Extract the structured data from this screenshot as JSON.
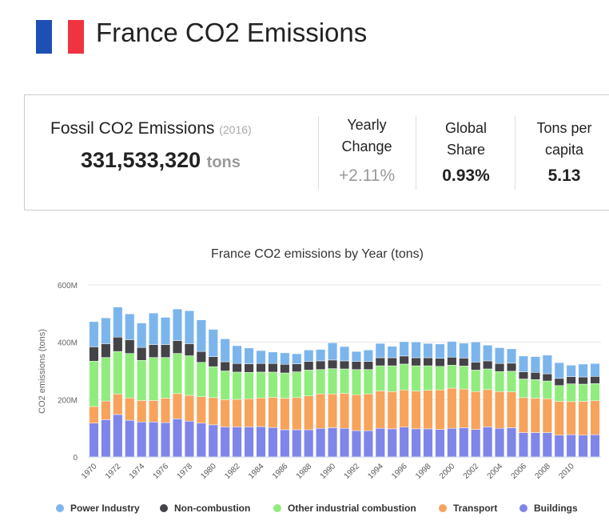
{
  "header": {
    "title": "France CO2 Emissions"
  },
  "stats": {
    "fossil": {
      "label": "Fossil CO2 Emissions",
      "year": "(2016)",
      "value": "331,533,320",
      "unit": "tons"
    },
    "yearly": {
      "label": "Yearly Change",
      "value": "+2.11%"
    },
    "share": {
      "label": "Global Share",
      "value": "0.93%"
    },
    "capita": {
      "label": "Tons per capita",
      "value": "5.13"
    }
  },
  "chart_data": {
    "type": "stacked_bar",
    "title": "France CO2 emissions by Year (tons)",
    "y_label": "CO2 emissions (tons)",
    "categories": [
      "1970",
      null,
      "1972",
      null,
      "1974",
      null,
      "1976",
      null,
      "1978",
      null,
      "1980",
      null,
      "1982",
      null,
      "1984",
      null,
      "1986",
      null,
      "1988",
      null,
      "1990",
      null,
      "1992",
      null,
      "1994",
      null,
      "1996",
      null,
      "1998",
      null,
      "2000",
      null,
      "2002",
      null,
      "2004",
      null,
      "2006",
      null,
      "2008",
      null,
      "2010",
      null,
      null
    ],
    "ylim": [
      0,
      600000000.0
    ],
    "yticks": [
      0,
      {
        "value": 200000000.0,
        "label": "200M"
      },
      {
        "value": 400000000.0,
        "label": "400M"
      },
      {
        "value": 600000000.0,
        "label": "600M"
      }
    ],
    "grid": true,
    "legend": "bottom",
    "series": [
      {
        "name": "Power Industry",
        "color": "#7cb5ec",
        "values": [
          88000000.0,
          90000000.0,
          105000000.0,
          90000000.0,
          85000000.0,
          110000000.0,
          95000000.0,
          110000000.0,
          115000000.0,
          110000000.0,
          95000000.0,
          80000000.0,
          62000000.0,
          55000000.0,
          45000000.0,
          40000000.0,
          40000000.0,
          35000000.0,
          40000000.0,
          40000000.0,
          60000000.0,
          50000000.0,
          35000000.0,
          40000000.0,
          50000000.0,
          40000000.0,
          50000000.0,
          55000000.0,
          50000000.0,
          50000000.0,
          55000000.0,
          52000000.0,
          70000000.0,
          55000000.0,
          55000000.0,
          50000000.0,
          55000000.0,
          55000000.0,
          65000000.0,
          55000000.0,
          40000000.0,
          45000000.0,
          45000000.0
        ]
      },
      {
        "name": "Non-combustion",
        "color": "#434348",
        "values": [
          50000000.0,
          48000000.0,
          50000000.0,
          48000000.0,
          45000000.0,
          45000000.0,
          45000000.0,
          45000000.0,
          42000000.0,
          38000000.0,
          35000000.0,
          32000000.0,
          30000000.0,
          30000000.0,
          30000000.0,
          30000000.0,
          30000000.0,
          28000000.0,
          30000000.0,
          30000000.0,
          30000000.0,
          28000000.0,
          28000000.0,
          28000000.0,
          28000000.0,
          28000000.0,
          28000000.0,
          28000000.0,
          28000000.0,
          28000000.0,
          28000000.0,
          28000000.0,
          28000000.0,
          28000000.0,
          28000000.0,
          28000000.0,
          25000000.0,
          25000000.0,
          25000000.0,
          25000000.0,
          25000000.0,
          25000000.0,
          25000000.0
        ]
      },
      {
        "name": "Other industrial combustion",
        "color": "#90ed7d",
        "values": [
          158000000.0,
          152000000.0,
          148000000.0,
          155000000.0,
          140000000.0,
          150000000.0,
          142000000.0,
          140000000.0,
          138000000.0,
          120000000.0,
          108000000.0,
          100000000.0,
          95000000.0,
          92000000.0,
          90000000.0,
          88000000.0,
          88000000.0,
          90000000.0,
          90000000.0,
          85000000.0,
          88000000.0,
          85000000.0,
          88000000.0,
          85000000.0,
          88000000.0,
          90000000.0,
          90000000.0,
          88000000.0,
          85000000.0,
          82000000.0,
          80000000.0,
          80000000.0,
          75000000.0,
          72000000.0,
          70000000.0,
          72000000.0,
          65000000.0,
          65000000.0,
          62000000.0,
          55000000.0,
          62000000.0,
          60000000.0,
          60000000.0
        ]
      },
      {
        "name": "Transport",
        "color": "#f7a35c",
        "values": [
          58000000.0,
          65000000.0,
          72000000.0,
          78000000.0,
          75000000.0,
          75000000.0,
          85000000.0,
          88000000.0,
          90000000.0,
          92000000.0,
          95000000.0,
          95000000.0,
          96000000.0,
          98000000.0,
          100000000.0,
          105000000.0,
          110000000.0,
          112000000.0,
          118000000.0,
          120000000.0,
          118000000.0,
          122000000.0,
          125000000.0,
          128000000.0,
          130000000.0,
          130000000.0,
          130000000.0,
          132000000.0,
          135000000.0,
          138000000.0,
          140000000.0,
          135000000.0,
          132000000.0,
          130000000.0,
          128000000.0,
          125000000.0,
          122000000.0,
          120000000.0,
          118000000.0,
          118000000.0,
          115000000.0,
          118000000.0,
          118000000.0
        ]
      },
      {
        "name": "Buildings",
        "color": "#8085e9",
        "values": [
          118000000.0,
          130000000.0,
          148000000.0,
          128000000.0,
          122000000.0,
          122000000.0,
          120000000.0,
          133000000.0,
          125000000.0,
          118000000.0,
          112000000.0,
          105000000.0,
          105000000.0,
          105000000.0,
          106000000.0,
          103000000.0,
          95000000.0,
          95000000.0,
          95000000.0,
          100000000.0,
          102000000.0,
          100000000.0,
          92000000.0,
          92000000.0,
          100000000.0,
          98000000.0,
          104000000.0,
          98000000.0,
          98000000.0,
          96000000.0,
          100000000.0,
          102000000.0,
          96000000.0,
          105000000.0,
          100000000.0,
          102000000.0,
          85000000.0,
          85000000.0,
          85000000.0,
          76000000.0,
          78000000.0,
          76000000.0,
          78000000.0
        ]
      }
    ]
  }
}
